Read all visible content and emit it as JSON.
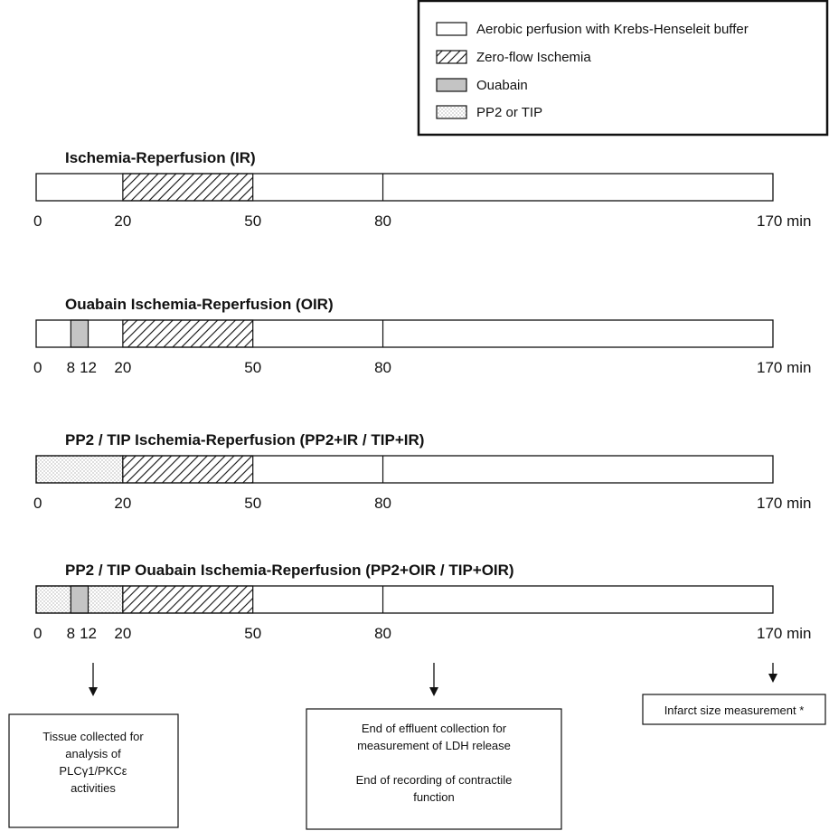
{
  "legend": {
    "items": [
      {
        "pattern": "aerobic",
        "label": "Aerobic perfusion with Krebs-Henseleit buffer"
      },
      {
        "pattern": "ischemia",
        "label": "Zero-flow Ischemia"
      },
      {
        "pattern": "ouabain",
        "label": "Ouabain"
      },
      {
        "pattern": "drug",
        "label": "PP2 or TIP"
      }
    ]
  },
  "colors": {
    "aerobic": "#ffffff",
    "ouabain": "#c4c4c4",
    "drug_dots": "#8a8a8a",
    "hatch": "#111111",
    "stroke": "#111111"
  },
  "timeline": {
    "total_min": 170,
    "unit": "min",
    "protocols": [
      {
        "id": "ir",
        "title": "Ischemia-Reperfusion (IR)",
        "segments": [
          {
            "start": 20,
            "end": 50,
            "pattern": "ischemia"
          }
        ],
        "dividers": [
          80
        ],
        "ticks": [
          "0",
          "20",
          "50",
          "80",
          "170 min"
        ],
        "tick_values": [
          0,
          20,
          50,
          80,
          170
        ]
      },
      {
        "id": "oir",
        "title": "Ouabain Ischemia-Reperfusion (OIR)",
        "segments": [
          {
            "start": 8,
            "end": 12,
            "pattern": "ouabain"
          },
          {
            "start": 20,
            "end": 50,
            "pattern": "ischemia"
          }
        ],
        "dividers": [
          80
        ],
        "ticks": [
          "0",
          "8",
          "12",
          "20",
          "50",
          "80",
          "170 min"
        ],
        "tick_values": [
          0,
          8,
          12,
          20,
          50,
          80,
          170
        ]
      },
      {
        "id": "pp2-ir",
        "title": "PP2 / TIP Ischemia-Reperfusion (PP2+IR / TIP+IR)",
        "segments": [
          {
            "start": 0,
            "end": 20,
            "pattern": "drug"
          },
          {
            "start": 20,
            "end": 50,
            "pattern": "ischemia"
          }
        ],
        "dividers": [
          80
        ],
        "ticks": [
          "0",
          "20",
          "50",
          "80",
          "170 min"
        ],
        "tick_values": [
          0,
          20,
          50,
          80,
          170
        ]
      },
      {
        "id": "pp2-oir",
        "title": "PP2 / TIP Ouabain Ischemia-Reperfusion (PP2+OIR / TIP+OIR)",
        "segments": [
          {
            "start": 0,
            "end": 20,
            "pattern": "drug"
          },
          {
            "start": 8,
            "end": 12,
            "pattern": "ouabain"
          },
          {
            "start": 20,
            "end": 50,
            "pattern": "ischemia"
          }
        ],
        "dividers": [
          80
        ],
        "ticks": [
          "0",
          "8",
          "12",
          "20",
          "50",
          "80",
          "170 min"
        ],
        "tick_values": [
          0,
          8,
          12,
          20,
          50,
          80,
          170
        ]
      }
    ]
  },
  "notes": [
    {
      "at_min": 10,
      "lines": [
        "Tissue collected for",
        "analysis of",
        "PLCγ1/PKCε",
        "activities"
      ]
    },
    {
      "at_min": 80,
      "lines": [
        "End of effluent collection for",
        "measurement of LDH release",
        "",
        "End of recording of contractile",
        "function"
      ]
    },
    {
      "at_min": 170,
      "lines": [
        "Infarct size measurement *"
      ]
    }
  ]
}
